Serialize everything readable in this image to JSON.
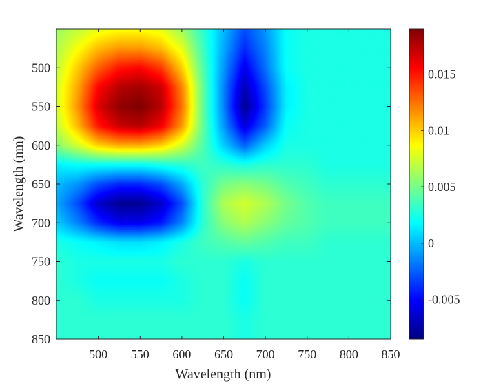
{
  "chart_data": {
    "type": "heatmap",
    "title": "",
    "xlabel": "Wavelength (nm)",
    "ylabel": "Wavelength (nm)",
    "xlim": [
      450,
      850
    ],
    "ylim": [
      450,
      850
    ],
    "y_reversed": true,
    "x_ticks": [
      "500",
      "550",
      "600",
      "650",
      "700",
      "750",
      "800",
      "850"
    ],
    "y_ticks": [
      "500",
      "550",
      "600",
      "650",
      "700",
      "750",
      "800",
      "850"
    ],
    "colormap": "jet",
    "clim": [
      -0.0085,
      0.019
    ],
    "colorbar_ticks": [
      {
        "value": 0.015,
        "label": "0.015"
      },
      {
        "value": 0.01,
        "label": "0.01"
      },
      {
        "value": 0.005,
        "label": "0.005"
      },
      {
        "value": 0,
        "label": "0"
      },
      {
        "value": -0.005,
        "label": "-0.005"
      }
    ],
    "x_wavelengths": [
      450,
      475,
      500,
      525,
      550,
      575,
      600,
      625,
      650,
      675,
      700,
      725,
      750,
      775,
      800,
      825,
      850
    ],
    "y_wavelengths": [
      450,
      475,
      500,
      525,
      550,
      575,
      600,
      625,
      650,
      675,
      700,
      725,
      750,
      775,
      800,
      825,
      850
    ],
    "z": [
      [
        0.006,
        0.007,
        0.008,
        0.0085,
        0.0085,
        0.008,
        0.006,
        0.003,
        0.0,
        -0.003,
        -0.001,
        0.002,
        0.0025,
        0.0025,
        0.0025,
        0.0025,
        0.0025
      ],
      [
        0.0065,
        0.0085,
        0.0105,
        0.0115,
        0.0115,
        0.0105,
        0.008,
        0.0035,
        -0.0005,
        -0.004,
        -0.0015,
        0.002,
        0.0025,
        0.0025,
        0.0025,
        0.0025,
        0.0025
      ],
      [
        0.007,
        0.01,
        0.013,
        0.015,
        0.0155,
        0.014,
        0.01,
        0.004,
        -0.001,
        -0.0055,
        -0.002,
        0.002,
        0.0025,
        0.0025,
        0.0025,
        0.0025,
        0.0025
      ],
      [
        0.0075,
        0.011,
        0.0155,
        0.0175,
        0.018,
        0.017,
        0.012,
        0.0045,
        -0.0015,
        -0.007,
        -0.003,
        0.0015,
        0.0025,
        0.0025,
        0.0025,
        0.0025,
        0.0025
      ],
      [
        0.0075,
        0.0115,
        0.0165,
        0.0185,
        0.019,
        0.0175,
        0.0125,
        0.0045,
        -0.0015,
        -0.008,
        -0.0035,
        0.0015,
        0.0025,
        0.0025,
        0.0025,
        0.0025,
        0.0025
      ],
      [
        0.007,
        0.0105,
        0.015,
        0.017,
        0.0175,
        0.016,
        0.0115,
        0.0045,
        -0.001,
        -0.006,
        -0.0025,
        0.002,
        0.0025,
        0.0025,
        0.0025,
        0.0025,
        0.0025
      ],
      [
        0.0055,
        0.0075,
        0.01,
        0.011,
        0.011,
        0.01,
        0.0075,
        0.004,
        0.0005,
        -0.0025,
        0.0005,
        0.0025,
        0.0025,
        0.0025,
        0.0025,
        0.0025,
        0.0025
      ],
      [
        0.0015,
        0.002,
        0.002,
        0.002,
        0.002,
        0.0025,
        0.003,
        0.0035,
        0.003,
        0.0025,
        0.003,
        0.003,
        0.003,
        0.0025,
        0.0025,
        0.0025,
        0.0025
      ],
      [
        0.0,
        -0.001,
        -0.003,
        -0.004,
        -0.004,
        -0.003,
        -0.0005,
        0.003,
        0.005,
        0.0055,
        0.005,
        0.004,
        0.0035,
        0.003,
        0.003,
        0.003,
        0.003
      ],
      [
        -0.0005,
        -0.003,
        -0.0065,
        -0.008,
        -0.008,
        -0.0065,
        -0.003,
        0.003,
        0.0065,
        0.0075,
        0.0065,
        0.005,
        0.004,
        0.0035,
        0.0035,
        0.0035,
        0.0035
      ],
      [
        0.0005,
        -0.0015,
        -0.004,
        -0.0055,
        -0.0055,
        -0.0045,
        -0.0015,
        0.003,
        0.0055,
        0.0065,
        0.0055,
        0.0045,
        0.004,
        0.0035,
        0.0035,
        0.0035,
        0.0035
      ],
      [
        0.0025,
        0.002,
        0.0015,
        0.001,
        0.001,
        0.0015,
        0.0025,
        0.0035,
        0.004,
        0.0045,
        0.004,
        0.0035,
        0.0035,
        0.003,
        0.003,
        0.003,
        0.003
      ],
      [
        0.003,
        0.0025,
        0.0025,
        0.0025,
        0.0025,
        0.0025,
        0.003,
        0.003,
        0.003,
        0.0025,
        0.003,
        0.003,
        0.003,
        0.003,
        0.003,
        0.003,
        0.003
      ],
      [
        0.003,
        0.0025,
        0.002,
        0.002,
        0.002,
        0.002,
        0.0025,
        0.003,
        0.003,
        0.002,
        0.003,
        0.003,
        0.003,
        0.003,
        0.003,
        0.003,
        0.003
      ],
      [
        0.003,
        0.003,
        0.0025,
        0.0025,
        0.0025,
        0.0025,
        0.0025,
        0.003,
        0.003,
        0.002,
        0.003,
        0.003,
        0.003,
        0.003,
        0.003,
        0.003,
        0.003
      ],
      [
        0.003,
        0.003,
        0.003,
        0.003,
        0.003,
        0.003,
        0.003,
        0.003,
        0.003,
        0.0025,
        0.003,
        0.003,
        0.003,
        0.003,
        0.003,
        0.003,
        0.003
      ],
      [
        0.003,
        0.003,
        0.003,
        0.003,
        0.003,
        0.003,
        0.003,
        0.003,
        0.003,
        0.0025,
        0.003,
        0.003,
        0.003,
        0.003,
        0.003,
        0.003,
        0.003
      ]
    ],
    "grid": false,
    "colorbar_position": "right"
  }
}
